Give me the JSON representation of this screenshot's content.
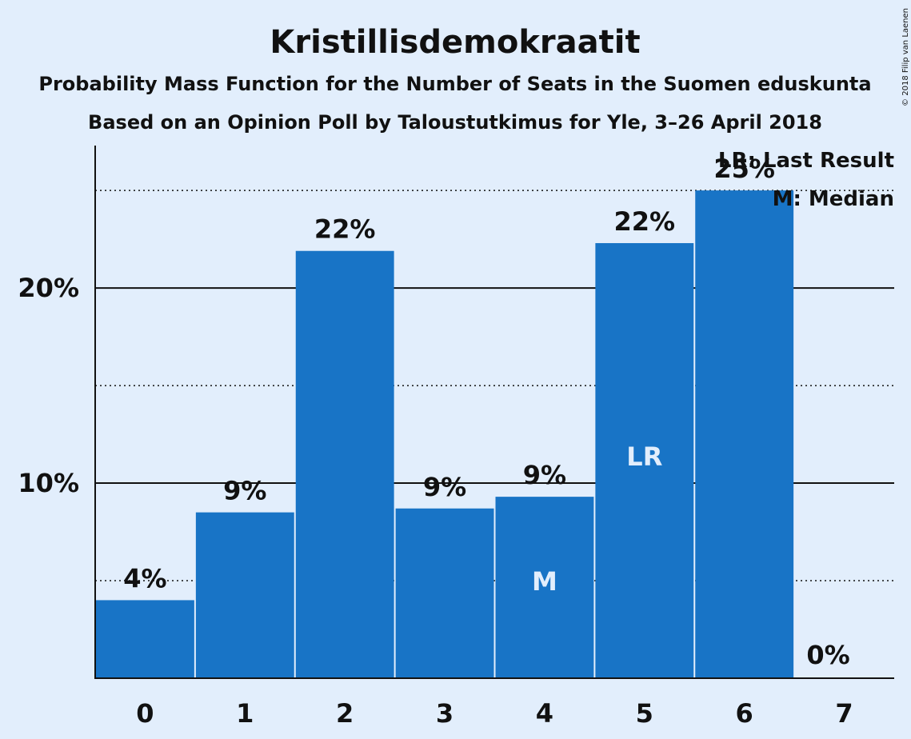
{
  "chart_data": {
    "type": "bar",
    "title": "Kristillisdemokraatit",
    "subtitle_1": "Probability Mass Function for the Number of Seats in the Suomen eduskunta",
    "subtitle_2": "Based on an Opinion Poll by Taloustutkimus for Yle, 3–26 April 2018",
    "copyright": "© 2018 Filip van Laenen",
    "categories": [
      "0",
      "1",
      "2",
      "3",
      "4",
      "5",
      "6",
      "7"
    ],
    "values": [
      4.0,
      8.5,
      21.9,
      8.7,
      9.3,
      22.3,
      25.0,
      0.0
    ],
    "value_labels": [
      "4%",
      "9%",
      "22%",
      "9%",
      "9%",
      "22%",
      "25%",
      "0%"
    ],
    "bar_markers": [
      "",
      "",
      "",
      "",
      "M",
      "LR",
      "",
      ""
    ],
    "ylim": [
      0,
      27.3
    ],
    "yticks": [
      10,
      20
    ],
    "ytick_labels": [
      "10%",
      "20%"
    ],
    "dotted_gridlines": [
      5,
      15,
      25
    ],
    "legend": {
      "position": "top-right",
      "lr": "LR: Last Result",
      "median": "M: Median"
    },
    "colors": {
      "bar": "#1874c6",
      "background": "#e2eefc",
      "text": "#111111"
    }
  }
}
